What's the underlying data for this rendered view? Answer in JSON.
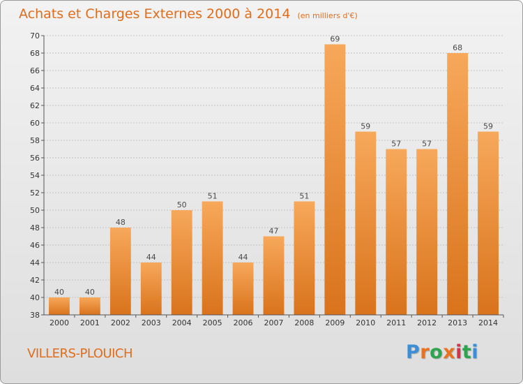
{
  "header": {
    "title": "Achats et Charges Externes 2000 à 2014",
    "unit": "(en milliers d'€)"
  },
  "footer": {
    "commune": "VILLERS-PLOUICH",
    "brand": "Proxiti",
    "brand_colors": [
      "#3b8fd8",
      "#e8731f",
      "#2ea44f",
      "#e8731f",
      "#d6334a",
      "#2ea44f",
      "#3b8fd8"
    ]
  },
  "colors": {
    "bar_top": "#f7a85a",
    "bar_bottom": "#d9731c",
    "grid": "#c4c4c4",
    "accent": "#e06d1b"
  },
  "chart_data": {
    "type": "bar",
    "categories": [
      "2000",
      "2001",
      "2002",
      "2003",
      "2004",
      "2005",
      "2006",
      "2007",
      "2008",
      "2009",
      "2010",
      "2011",
      "2012",
      "2013",
      "2014"
    ],
    "values": [
      40,
      40,
      48,
      44,
      50,
      51,
      44,
      47,
      51,
      69,
      59,
      57,
      57,
      68,
      59
    ],
    "ylim": [
      38,
      70
    ],
    "yticks": [
      38,
      40,
      42,
      44,
      46,
      48,
      50,
      52,
      54,
      56,
      58,
      60,
      62,
      64,
      66,
      68,
      70
    ],
    "grid": true,
    "title": "Achats et Charges Externes 2000 à 2014",
    "ylabel": "",
    "xlabel": ""
  }
}
